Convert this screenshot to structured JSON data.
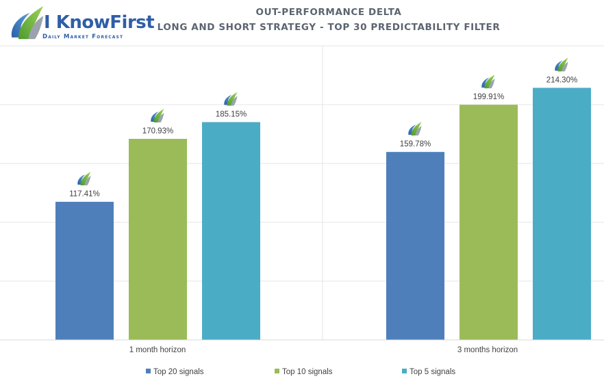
{
  "logo": {
    "brand_text": "I KnowFirst",
    "tagline": "Daily Market Forecast"
  },
  "chart_data": {
    "type": "bar",
    "title": "OUT-PERFORMANCE DELTA",
    "subtitle": "LONG AND SHORT STRATEGY - TOP 30 PREDICTABILITY FILTER",
    "categories": [
      "1 month horizon",
      "3 months horizon"
    ],
    "series": [
      {
        "name": "Top 20 signals",
        "values": [
          117.41,
          159.78
        ],
        "labels": [
          "117.41%",
          "159.78%"
        ],
        "color": "#4e7fbb"
      },
      {
        "name": "Top 10 signals",
        "values": [
          170.93,
          199.91
        ],
        "labels": [
          "170.93%",
          "199.91%"
        ],
        "color": "#9bbb59"
      },
      {
        "name": "Top 5 signals",
        "values": [
          185.15,
          214.3
        ],
        "labels": [
          "185.15%",
          "214.30%"
        ],
        "color": "#4bacc6"
      }
    ],
    "ylim": [
      0,
      250
    ],
    "y_gridlines": [
      50,
      100,
      150,
      200
    ],
    "grid": true,
    "legend_position": "bottom",
    "bar_annotation_icon": "i-know-first-logo-icon",
    "colors": {
      "axis": "#d9d9d9",
      "grid": "#e6e6e6",
      "text": "#404040",
      "title": "#5b6470"
    }
  }
}
